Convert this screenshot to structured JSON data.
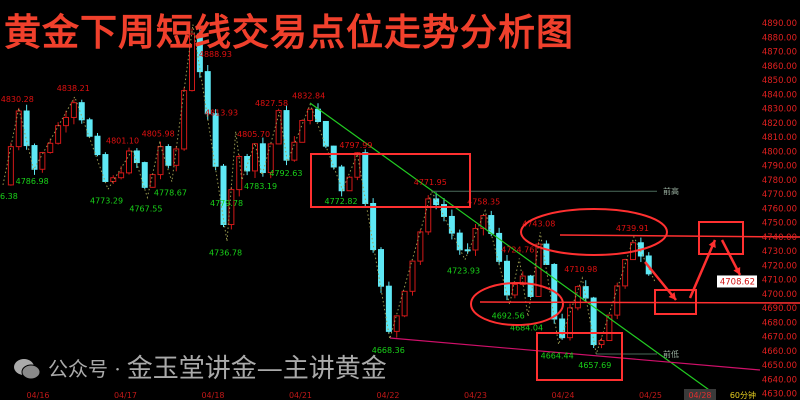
{
  "title": "黄金下周短线交易点位走势分析图",
  "watermark": {
    "prefix": "公众号 ·",
    "text": "金玉堂讲金—主讲黄金"
  },
  "colors": {
    "up": "#d01818",
    "down": "#5ee8f5",
    "high_label": "#e01010",
    "low_label": "#19d119",
    "trendline": "#22cc22",
    "support_line": "#d0106a",
    "annotation": "#ff3030",
    "axis_text": "#e02020"
  },
  "chart_data": {
    "type": "candlestick",
    "period": "60分钟",
    "ylim": [
      4630,
      4895
    ],
    "y_ticks": [
      4890,
      4880,
      4870,
      4860,
      4850,
      4840,
      4830,
      4820,
      4810,
      4800,
      4790,
      4780,
      4770,
      4760,
      4750,
      4740,
      4730,
      4720,
      4710,
      4700,
      4690,
      4680,
      4670,
      4660,
      4650,
      4640,
      4630
    ],
    "y_tick_labels": [
      "4890.00",
      "4880.00",
      "4870.00",
      "4860.00",
      "4850.00",
      "4840.00",
      "4830.00",
      "4820.00",
      "4810.00",
      "4800.00",
      "4790.00",
      "4780.00",
      "4770.00",
      "4760.00",
      "4750.00",
      "4740.00",
      "4730.00",
      "4720.00",
      "4710.00",
      "4700.00",
      "4690.00",
      "4680.00",
      "4670.00",
      "4660.00",
      "4650.00",
      "4640.00",
      "4630.00"
    ],
    "dates": [
      "04/16",
      "04/17",
      "04/18",
      "04/21",
      "04/22",
      "04/23",
      "04/24",
      "04/25",
      "04/28"
    ],
    "last_price": "4708.62",
    "pivots": [
      {
        "day": -0.4,
        "price": 4776.38,
        "type": "low",
        "label": "6.38"
      },
      {
        "day": -0.22,
        "price": 4830.28,
        "type": "high",
        "label": "4830.28"
      },
      {
        "day": -0.05,
        "price": 4786.98,
        "type": "low",
        "label": "4786.98"
      },
      {
        "day": 0.42,
        "price": 4838.21,
        "type": "high",
        "label": "4838.21"
      },
      {
        "day": 0.8,
        "price": 4773.29,
        "type": "low",
        "label": "4773.29"
      },
      {
        "day": 1.08,
        "price": 4801.1,
        "type": "high",
        "label": "4801.10"
      },
      {
        "day": 1.25,
        "price": 4767.55,
        "type": "low",
        "label": "4767.55"
      },
      {
        "day": 1.39,
        "price": 4805.98,
        "type": "high",
        "label": "4805.98"
      },
      {
        "day": 1.53,
        "price": 4778.67,
        "type": "low",
        "label": "4778.67"
      },
      {
        "day": 1.77,
        "price": 4888.93,
        "type": "high",
        "label": "4888.93"
      },
      {
        "day": 2.16,
        "price": 4736.78,
        "type": "low",
        "label": "4736.78"
      },
      {
        "day": 2.26,
        "price": 4813.93,
        "type": "high",
        "label": "4813.93"
      },
      {
        "day": 2.33,
        "price": 4779.78,
        "type": "low",
        "label": "4779.78"
      },
      {
        "day": 2.48,
        "price": 4805.7,
        "type": "high",
        "label": "4805.70"
      },
      {
        "day": 2.56,
        "price": 4783.19,
        "type": "low",
        "label": "4783.19"
      },
      {
        "day": 2.76,
        "price": 4827.58,
        "type": "high",
        "label": "4827.58"
      },
      {
        "day": 2.85,
        "price": 4792.63,
        "type": "low",
        "label": "4792.63"
      },
      {
        "day": 3.11,
        "price": 4832.84,
        "type": "high",
        "label": "4832.84"
      },
      {
        "day": 3.48,
        "price": 4772.82,
        "type": "low",
        "label": "4772.82"
      },
      {
        "day": 3.65,
        "price": 4797.99,
        "type": "high",
        "label": "4797.99"
      },
      {
        "day": 4.02,
        "price": 4668.36,
        "type": "low",
        "label": "4668.36"
      },
      {
        "day": 4.5,
        "price": 4771.95,
        "type": "high",
        "label": "4771.95"
      },
      {
        "day": 4.88,
        "price": 4723.93,
        "type": "low",
        "label": "4723.93"
      },
      {
        "day": 5.11,
        "price": 4758.35,
        "type": "high",
        "label": "4758.35"
      },
      {
        "day": 5.39,
        "price": 4692.56,
        "type": "low",
        "label": "4692.56"
      },
      {
        "day": 5.5,
        "price": 4724.76,
        "type": "high",
        "label": "4724.76"
      },
      {
        "day": 5.6,
        "price": 4684.04,
        "type": "low",
        "label": "4684.04"
      },
      {
        "day": 5.74,
        "price": 4743.08,
        "type": "high",
        "label": "4743.08"
      },
      {
        "day": 5.95,
        "price": 4664.44,
        "type": "low",
        "label": "4664.44"
      },
      {
        "day": 6.22,
        "price": 4710.98,
        "type": "high",
        "label": "4710.98"
      },
      {
        "day": 6.38,
        "price": 4657.69,
        "type": "low",
        "label": "4657.69"
      },
      {
        "day": 6.81,
        "price": 4739.91,
        "type": "high",
        "label": "4739.91"
      },
      {
        "day": 7.05,
        "price": 4708.62,
        "type": "last",
        "label": ""
      }
    ],
    "levels": [
      {
        "label": "前高",
        "price": 4771.95
      },
      {
        "label": "前低",
        "price": 4657.69
      }
    ]
  }
}
